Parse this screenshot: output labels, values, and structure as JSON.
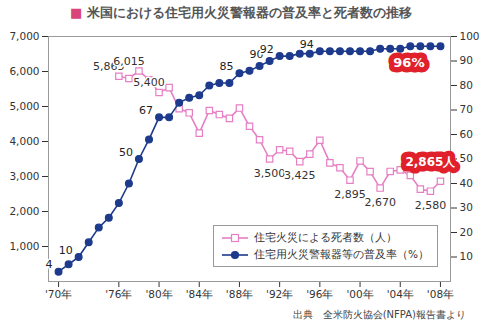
{
  "chart_data": {
    "type": "line",
    "title": "■ 米国における住宅用火災警報器の普及率と死者数の推移",
    "caption": "出典　全米防火協会(NFPA)報告書より",
    "x": [
      1970,
      1971,
      1972,
      1973,
      1974,
      1975,
      1976,
      1977,
      1978,
      1979,
      1980,
      1981,
      1982,
      1983,
      1984,
      1985,
      1986,
      1987,
      1988,
      1989,
      1990,
      1991,
      1992,
      1993,
      1994,
      1995,
      1996,
      1997,
      1998,
      1999,
      2000,
      2001,
      2002,
      2003,
      2004,
      2005,
      2006,
      2007,
      2008
    ],
    "xlim": [
      1969,
      2009
    ],
    "xticks": [
      {
        "value": 1970,
        "label": "'70年"
      },
      {
        "value": 1976,
        "label": "'76年"
      },
      {
        "value": 1980,
        "label": "'80年"
      },
      {
        "value": 1984,
        "label": "'84年"
      },
      {
        "value": 1988,
        "label": "'88年"
      },
      {
        "value": 1992,
        "label": "'92年"
      },
      {
        "value": 1996,
        "label": "'96年"
      },
      {
        "value": 2000,
        "label": "'00年"
      },
      {
        "value": 2004,
        "label": "'04年"
      },
      {
        "value": 2008,
        "label": "'08年"
      }
    ],
    "ylim": [
      0,
      7000
    ],
    "yticks": [
      {
        "value": 1000,
        "label": "1,000"
      },
      {
        "value": 2000,
        "label": "2,000"
      },
      {
        "value": 3000,
        "label": "3,000"
      },
      {
        "value": 4000,
        "label": "4,000"
      },
      {
        "value": 5000,
        "label": "5,000"
      },
      {
        "value": 6000,
        "label": "6,000"
      },
      {
        "value": 7000,
        "label": "7,000"
      }
    ],
    "y2lim": [
      0,
      100
    ],
    "y2ticks": [
      10,
      20,
      30,
      40,
      50,
      60,
      70,
      80,
      90,
      100
    ],
    "grid": false,
    "legend": "bottom-right",
    "series": [
      {
        "name": "住宅火災による死者数（人）",
        "color": "#e67fc4",
        "marker": "open-square",
        "values": [
          null,
          null,
          null,
          null,
          null,
          null,
          5865,
          5800,
          6015,
          5765,
          5400,
          5540,
          4940,
          4820,
          4240,
          4885,
          4770,
          4660,
          4955,
          4435,
          4050,
          3500,
          3765,
          3720,
          3425,
          3640,
          4035,
          3390,
          3250,
          2895,
          3445,
          3140,
          2670,
          3145,
          3190,
          3030,
          2640,
          2580,
          2865
        ],
        "value_labels": [
          null,
          null,
          null,
          null,
          null,
          null,
          "5,865",
          null,
          "6,015",
          null,
          "5,400",
          null,
          null,
          null,
          null,
          null,
          null,
          null,
          null,
          null,
          null,
          "3,500",
          null,
          null,
          "3,425",
          null,
          null,
          null,
          null,
          "2,895",
          null,
          null,
          "2,670",
          null,
          null,
          null,
          null,
          "2,580",
          "2,865人"
        ]
      },
      {
        "name": "住宅用火災警報器等の普及率（%）",
        "color": "#1d3a8c",
        "marker": "circle",
        "axis": "y2",
        "values": [
          4,
          7,
          10,
          16,
          22,
          26,
          32,
          40,
          50,
          58,
          67,
          67,
          73,
          75,
          76,
          80,
          81,
          81,
          85,
          86,
          88,
          90,
          92,
          92,
          93,
          93,
          94,
          94,
          94,
          94,
          94,
          94,
          95,
          95,
          95,
          96,
          96,
          96,
          96
        ],
        "value_labels": [
          "4",
          null,
          "10",
          null,
          null,
          null,
          null,
          null,
          "50",
          null,
          "67",
          null,
          null,
          null,
          null,
          null,
          null,
          null,
          "85",
          null,
          null,
          "90",
          "92",
          null,
          null,
          null,
          "94",
          null,
          null,
          null,
          null,
          null,
          null,
          null,
          null,
          null,
          null,
          null,
          "96%"
        ]
      }
    ]
  }
}
